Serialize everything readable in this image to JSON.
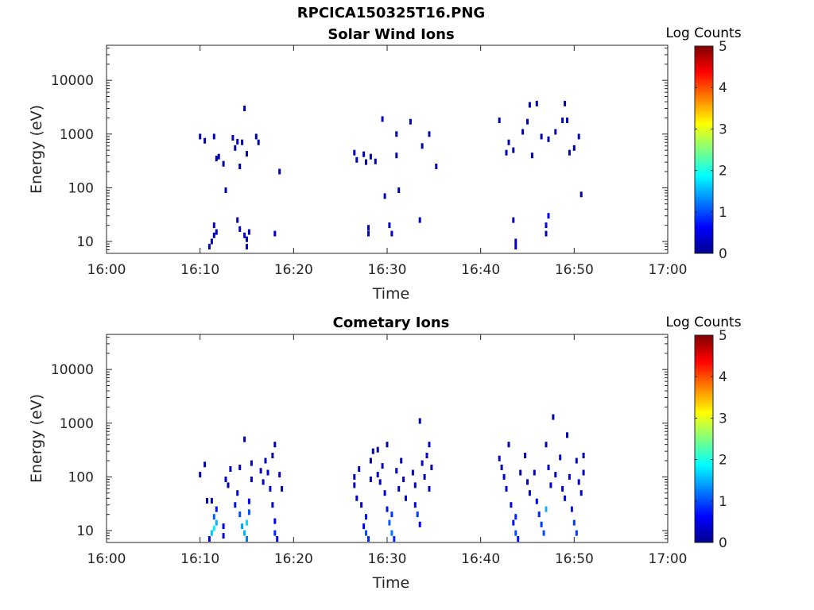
{
  "figure_title": "RPCICA150325T16.PNG",
  "chart_data": [
    {
      "type": "heatmap",
      "title": "Solar Wind Ions",
      "xlabel": "Time",
      "ylabel": "Energy (eV)",
      "x_ticks": [
        "16:00",
        "16:10",
        "16:20",
        "16:30",
        "16:40",
        "16:50",
        "17:00"
      ],
      "x_range": [
        "16:00",
        "17:00"
      ],
      "y_scale": "log",
      "y_ticks": [
        "10",
        "100",
        "1000",
        "10000"
      ],
      "y_range": [
        6,
        45000
      ],
      "colorbar": {
        "label": "Log Counts",
        "range": [
          0,
          5
        ],
        "ticks": [
          "0",
          "1",
          "2",
          "3",
          "4",
          "5"
        ],
        "colormap": "jet"
      },
      "cells": [
        {
          "t": "16:10:00",
          "e": 900,
          "v": 0.2
        },
        {
          "t": "16:10:30",
          "e": 750,
          "v": 0.2
        },
        {
          "t": "16:11:30",
          "e": 900,
          "v": 0.3
        },
        {
          "t": "16:11:45",
          "e": 350,
          "v": 0.2
        },
        {
          "t": "16:12:00",
          "e": 380,
          "v": 0.2
        },
        {
          "t": "16:12:30",
          "e": 280,
          "v": 0.2
        },
        {
          "t": "16:12:45",
          "e": 90,
          "v": 0.2
        },
        {
          "t": "16:13:30",
          "e": 850,
          "v": 0.3
        },
        {
          "t": "16:13:45",
          "e": 550,
          "v": 0.2
        },
        {
          "t": "16:14:00",
          "e": 720,
          "v": 0.3
        },
        {
          "t": "16:14:15",
          "e": 250,
          "v": 0.2
        },
        {
          "t": "16:14:30",
          "e": 700,
          "v": 0.2
        },
        {
          "t": "16:14:45",
          "e": 3000,
          "v": 0.2
        },
        {
          "t": "16:15:00",
          "e": 430,
          "v": 0.3
        },
        {
          "t": "16:16:00",
          "e": 900,
          "v": 0.2
        },
        {
          "t": "16:16:15",
          "e": 700,
          "v": 0.2
        },
        {
          "t": "16:18:30",
          "e": 200,
          "v": 0.2
        },
        {
          "t": "16:26:30",
          "e": 450,
          "v": 0.3
        },
        {
          "t": "16:26:45",
          "e": 330,
          "v": 0.2
        },
        {
          "t": "16:27:30",
          "e": 420,
          "v": 0.3
        },
        {
          "t": "16:27:45",
          "e": 300,
          "v": 0.2
        },
        {
          "t": "16:28:15",
          "e": 380,
          "v": 0.2
        },
        {
          "t": "16:28:45",
          "e": 310,
          "v": 0.2
        },
        {
          "t": "16:29:30",
          "e": 1900,
          "v": 0.3
        },
        {
          "t": "16:29:45",
          "e": 70,
          "v": 0.2
        },
        {
          "t": "16:31:00",
          "e": 1000,
          "v": 0.2
        },
        {
          "t": "16:31:15",
          "e": 90,
          "v": 0.2
        },
        {
          "t": "16:31:00",
          "e": 400,
          "v": 0.3
        },
        {
          "t": "16:32:30",
          "e": 1700,
          "v": 0.2
        },
        {
          "t": "16:33:45",
          "e": 600,
          "v": 0.2
        },
        {
          "t": "16:34:30",
          "e": 1000,
          "v": 0.2
        },
        {
          "t": "16:35:15",
          "e": 250,
          "v": 0.3
        },
        {
          "t": "16:42:00",
          "e": 1800,
          "v": 0.2
        },
        {
          "t": "16:42:45",
          "e": 450,
          "v": 0.3
        },
        {
          "t": "16:43:00",
          "e": 700,
          "v": 0.2
        },
        {
          "t": "16:43:30",
          "e": 500,
          "v": 0.2
        },
        {
          "t": "16:44:30",
          "e": 1100,
          "v": 0.2
        },
        {
          "t": "16:45:00",
          "e": 1700,
          "v": 0.3
        },
        {
          "t": "16:45:15",
          "e": 3500,
          "v": 0.3
        },
        {
          "t": "16:45:30",
          "e": 400,
          "v": 0.2
        },
        {
          "t": "16:46:00",
          "e": 3700,
          "v": 0.2
        },
        {
          "t": "16:46:30",
          "e": 900,
          "v": 0.2
        },
        {
          "t": "16:47:15",
          "e": 800,
          "v": 0.2
        },
        {
          "t": "16:48:00",
          "e": 1100,
          "v": 0.2
        },
        {
          "t": "16:48:45",
          "e": 1800,
          "v": 0.3
        },
        {
          "t": "16:49:00",
          "e": 3700,
          "v": 0.2
        },
        {
          "t": "16:49:15",
          "e": 1800,
          "v": 0.3
        },
        {
          "t": "16:49:30",
          "e": 450,
          "v": 0.2
        },
        {
          "t": "16:50:00",
          "e": 550,
          "v": 0.2
        },
        {
          "t": "16:50:30",
          "e": 900,
          "v": 0.2
        },
        {
          "t": "16:50:45",
          "e": 75,
          "v": 0.2
        },
        {
          "t": "16:11:00",
          "e": 8,
          "v": 0.3
        },
        {
          "t": "16:11:15",
          "e": 10,
          "v": 0.3
        },
        {
          "t": "16:11:30",
          "e": 13,
          "v": 0.3
        },
        {
          "t": "16:11:30",
          "e": 20,
          "v": 0.3
        },
        {
          "t": "16:11:45",
          "e": 15,
          "v": 0.3
        },
        {
          "t": "16:14:00",
          "e": 25,
          "v": 0.3
        },
        {
          "t": "16:14:15",
          "e": 17,
          "v": 0.3
        },
        {
          "t": "16:14:45",
          "e": 13,
          "v": 0.4
        },
        {
          "t": "16:15:00",
          "e": 8,
          "v": 0.4
        },
        {
          "t": "16:15:00",
          "e": 11,
          "v": 0.4
        },
        {
          "t": "16:15:15",
          "e": 15,
          "v": 0.3
        },
        {
          "t": "16:18:00",
          "e": 14,
          "v": 0.3
        },
        {
          "t": "16:28:00",
          "e": 14,
          "v": 0.3
        },
        {
          "t": "16:28:00",
          "e": 18,
          "v": 0.3
        },
        {
          "t": "16:30:15",
          "e": 20,
          "v": 0.3
        },
        {
          "t": "16:30:30",
          "e": 14,
          "v": 0.3
        },
        {
          "t": "16:33:30",
          "e": 25,
          "v": 0.3
        },
        {
          "t": "16:43:30",
          "e": 25,
          "v": 0.3
        },
        {
          "t": "16:43:45",
          "e": 8,
          "v": 0.3
        },
        {
          "t": "16:43:45",
          "e": 10,
          "v": 0.3
        },
        {
          "t": "16:47:00",
          "e": 14,
          "v": 0.4
        },
        {
          "t": "16:47:00",
          "e": 20,
          "v": 0.6
        },
        {
          "t": "16:47:15",
          "e": 30,
          "v": 0.6
        }
      ]
    },
    {
      "type": "heatmap",
      "title": "Cometary Ions",
      "xlabel": "Time",
      "ylabel": "Energy (eV)",
      "x_ticks": [
        "16:00",
        "16:10",
        "16:20",
        "16:30",
        "16:40",
        "16:50",
        "17:00"
      ],
      "x_range": [
        "16:00",
        "17:00"
      ],
      "y_scale": "log",
      "y_ticks": [
        "10",
        "100",
        "1000",
        "10000"
      ],
      "y_range": [
        6,
        45000
      ],
      "colorbar": {
        "label": "Log Counts",
        "range": [
          0,
          5
        ],
        "ticks": [
          "0",
          "1",
          "2",
          "3",
          "4",
          "5"
        ],
        "colormap": "jet"
      },
      "cells": [
        {
          "t": "16:10:00",
          "e": 110,
          "v": 0.2
        },
        {
          "t": "16:10:30",
          "e": 170,
          "v": 0.2
        },
        {
          "t": "16:10:45",
          "e": 36,
          "v": 0.3
        },
        {
          "t": "16:11:15",
          "e": 36,
          "v": 0.3
        },
        {
          "t": "16:11:00",
          "e": 7,
          "v": 0.6
        },
        {
          "t": "16:11:15",
          "e": 9,
          "v": 1.6
        },
        {
          "t": "16:11:30",
          "e": 11,
          "v": 1.8
        },
        {
          "t": "16:11:45",
          "e": 14,
          "v": 1.5
        },
        {
          "t": "16:11:30",
          "e": 18,
          "v": 1.1
        },
        {
          "t": "16:11:45",
          "e": 25,
          "v": 0.7
        },
        {
          "t": "16:12:30",
          "e": 8,
          "v": 0.4
        },
        {
          "t": "16:12:30",
          "e": 12,
          "v": 0.5
        },
        {
          "t": "16:12:45",
          "e": 90,
          "v": 0.3
        },
        {
          "t": "16:13:00",
          "e": 70,
          "v": 0.3
        },
        {
          "t": "16:13:15",
          "e": 140,
          "v": 0.3
        },
        {
          "t": "16:13:45",
          "e": 30,
          "v": 0.7
        },
        {
          "t": "16:14:00",
          "e": 50,
          "v": 0.5
        },
        {
          "t": "16:14:15",
          "e": 20,
          "v": 1.0
        },
        {
          "t": "16:14:15",
          "e": 150,
          "v": 0.3
        },
        {
          "t": "16:14:30",
          "e": 12,
          "v": 1.4
        },
        {
          "t": "16:14:45",
          "e": 9,
          "v": 1.5
        },
        {
          "t": "16:15:00",
          "e": 14,
          "v": 1.7
        },
        {
          "t": "16:15:00",
          "e": 7,
          "v": 1.2
        },
        {
          "t": "16:15:15",
          "e": 22,
          "v": 1.0
        },
        {
          "t": "16:15:15",
          "e": 35,
          "v": 0.6
        },
        {
          "t": "16:14:45",
          "e": 500,
          "v": 0.2
        },
        {
          "t": "16:15:30",
          "e": 180,
          "v": 0.3
        },
        {
          "t": "16:15:30",
          "e": 90,
          "v": 0.4
        },
        {
          "t": "16:16:30",
          "e": 130,
          "v": 0.3
        },
        {
          "t": "16:16:45",
          "e": 80,
          "v": 0.3
        },
        {
          "t": "16:17:00",
          "e": 200,
          "v": 0.3
        },
        {
          "t": "16:17:15",
          "e": 120,
          "v": 0.4
        },
        {
          "t": "16:17:30",
          "e": 60,
          "v": 0.4
        },
        {
          "t": "16:17:45",
          "e": 30,
          "v": 0.5
        },
        {
          "t": "16:17:45",
          "e": 250,
          "v": 0.3
        },
        {
          "t": "16:18:00",
          "e": 15,
          "v": 0.6
        },
        {
          "t": "16:18:00",
          "e": 9,
          "v": 0.8
        },
        {
          "t": "16:18:15",
          "e": 7,
          "v": 0.6
        },
        {
          "t": "16:18:00",
          "e": 400,
          "v": 0.2
        },
        {
          "t": "16:18:30",
          "e": 110,
          "v": 0.3
        },
        {
          "t": "16:18:45",
          "e": 60,
          "v": 0.2
        },
        {
          "t": "16:26:30",
          "e": 100,
          "v": 0.3
        },
        {
          "t": "16:26:30",
          "e": 70,
          "v": 0.3
        },
        {
          "t": "16:26:45",
          "e": 40,
          "v": 0.4
        },
        {
          "t": "16:27:00",
          "e": 140,
          "v": 0.3
        },
        {
          "t": "16:27:15",
          "e": 30,
          "v": 0.4
        },
        {
          "t": "16:27:30",
          "e": 12,
          "v": 0.6
        },
        {
          "t": "16:27:45",
          "e": 9,
          "v": 1.0
        },
        {
          "t": "16:27:45",
          "e": 18,
          "v": 0.7
        },
        {
          "t": "16:28:00",
          "e": 7,
          "v": 0.8
        },
        {
          "t": "16:28:15",
          "e": 90,
          "v": 0.3
        },
        {
          "t": "16:28:15",
          "e": 200,
          "v": 0.2
        },
        {
          "t": "16:28:30",
          "e": 300,
          "v": 0.2
        },
        {
          "t": "16:29:00",
          "e": 110,
          "v": 0.3
        },
        {
          "t": "16:29:15",
          "e": 80,
          "v": 0.4
        },
        {
          "t": "16:29:30",
          "e": 160,
          "v": 0.3
        },
        {
          "t": "16:29:45",
          "e": 50,
          "v": 0.5
        },
        {
          "t": "16:30:00",
          "e": 25,
          "v": 0.7
        },
        {
          "t": "16:30:15",
          "e": 14,
          "v": 1.1
        },
        {
          "t": "16:30:30",
          "e": 9,
          "v": 1.2
        },
        {
          "t": "16:30:30",
          "e": 20,
          "v": 0.9
        },
        {
          "t": "16:30:45",
          "e": 7,
          "v": 0.8
        },
        {
          "t": "16:31:00",
          "e": 130,
          "v": 0.3
        },
        {
          "t": "16:31:15",
          "e": 60,
          "v": 0.4
        },
        {
          "t": "16:31:30",
          "e": 200,
          "v": 0.3
        },
        {
          "t": "16:31:45",
          "e": 90,
          "v": 0.3
        },
        {
          "t": "16:32:00",
          "e": 40,
          "v": 0.4
        },
        {
          "t": "16:32:45",
          "e": 120,
          "v": 0.4
        },
        {
          "t": "16:33:00",
          "e": 70,
          "v": 0.4
        },
        {
          "t": "16:33:00",
          "e": 30,
          "v": 0.6
        },
        {
          "t": "16:33:15",
          "e": 20,
          "v": 0.9
        },
        {
          "t": "16:33:30",
          "e": 13,
          "v": 0.6
        },
        {
          "t": "16:33:30",
          "e": 1100,
          "v": 0.2
        },
        {
          "t": "16:33:45",
          "e": 180,
          "v": 0.3
        },
        {
          "t": "16:34:00",
          "e": 100,
          "v": 0.3
        },
        {
          "t": "16:34:15",
          "e": 250,
          "v": 0.3
        },
        {
          "t": "16:34:30",
          "e": 400,
          "v": 0.3
        },
        {
          "t": "16:34:30",
          "e": 60,
          "v": 0.3
        },
        {
          "t": "16:34:45",
          "e": 150,
          "v": 0.3
        },
        {
          "t": "16:30:00",
          "e": 400,
          "v": 0.2
        },
        {
          "t": "16:29:00",
          "e": 320,
          "v": 0.2
        },
        {
          "t": "16:42:00",
          "e": 220,
          "v": 0.3
        },
        {
          "t": "16:42:15",
          "e": 150,
          "v": 0.3
        },
        {
          "t": "16:42:30",
          "e": 100,
          "v": 0.4
        },
        {
          "t": "16:42:45",
          "e": 60,
          "v": 0.4
        },
        {
          "t": "16:43:00",
          "e": 400,
          "v": 0.2
        },
        {
          "t": "16:43:15",
          "e": 30,
          "v": 0.5
        },
        {
          "t": "16:43:30",
          "e": 14,
          "v": 0.7
        },
        {
          "t": "16:43:45",
          "e": 9,
          "v": 1.0
        },
        {
          "t": "16:43:45",
          "e": 18,
          "v": 0.8
        },
        {
          "t": "16:44:00",
          "e": 7,
          "v": 0.7
        },
        {
          "t": "16:44:15",
          "e": 120,
          "v": 0.3
        },
        {
          "t": "16:44:45",
          "e": 250,
          "v": 0.3
        },
        {
          "t": "16:45:00",
          "e": 80,
          "v": 0.4
        },
        {
          "t": "16:45:15",
          "e": 50,
          "v": 0.4
        },
        {
          "t": "16:45:45",
          "e": 120,
          "v": 0.4
        },
        {
          "t": "16:46:00",
          "e": 35,
          "v": 0.6
        },
        {
          "t": "16:46:15",
          "e": 20,
          "v": 0.8
        },
        {
          "t": "16:46:30",
          "e": 13,
          "v": 0.9
        },
        {
          "t": "16:46:45",
          "e": 9,
          "v": 1.0
        },
        {
          "t": "16:47:00",
          "e": 25,
          "v": 1.5
        },
        {
          "t": "16:47:00",
          "e": 400,
          "v": 0.3
        },
        {
          "t": "16:47:15",
          "e": 150,
          "v": 0.3
        },
        {
          "t": "16:47:30",
          "e": 70,
          "v": 0.4
        },
        {
          "t": "16:47:45",
          "e": 1300,
          "v": 0.2
        },
        {
          "t": "16:48:00",
          "e": 110,
          "v": 0.3
        },
        {
          "t": "16:48:30",
          "e": 230,
          "v": 0.3
        },
        {
          "t": "16:48:45",
          "e": 60,
          "v": 0.4
        },
        {
          "t": "16:49:00",
          "e": 40,
          "v": 0.5
        },
        {
          "t": "16:49:15",
          "e": 600,
          "v": 0.2
        },
        {
          "t": "16:49:30",
          "e": 100,
          "v": 0.4
        },
        {
          "t": "16:49:45",
          "e": 25,
          "v": 0.7
        },
        {
          "t": "16:50:00",
          "e": 14,
          "v": 0.9
        },
        {
          "t": "16:50:15",
          "e": 9,
          "v": 0.9
        },
        {
          "t": "16:50:15",
          "e": 200,
          "v": 0.3
        },
        {
          "t": "16:50:30",
          "e": 80,
          "v": 0.4
        },
        {
          "t": "16:50:45",
          "e": 50,
          "v": 0.4
        },
        {
          "t": "16:51:00",
          "e": 250,
          "v": 0.3
        },
        {
          "t": "16:51:00",
          "e": 120,
          "v": 0.4
        }
      ]
    }
  ]
}
